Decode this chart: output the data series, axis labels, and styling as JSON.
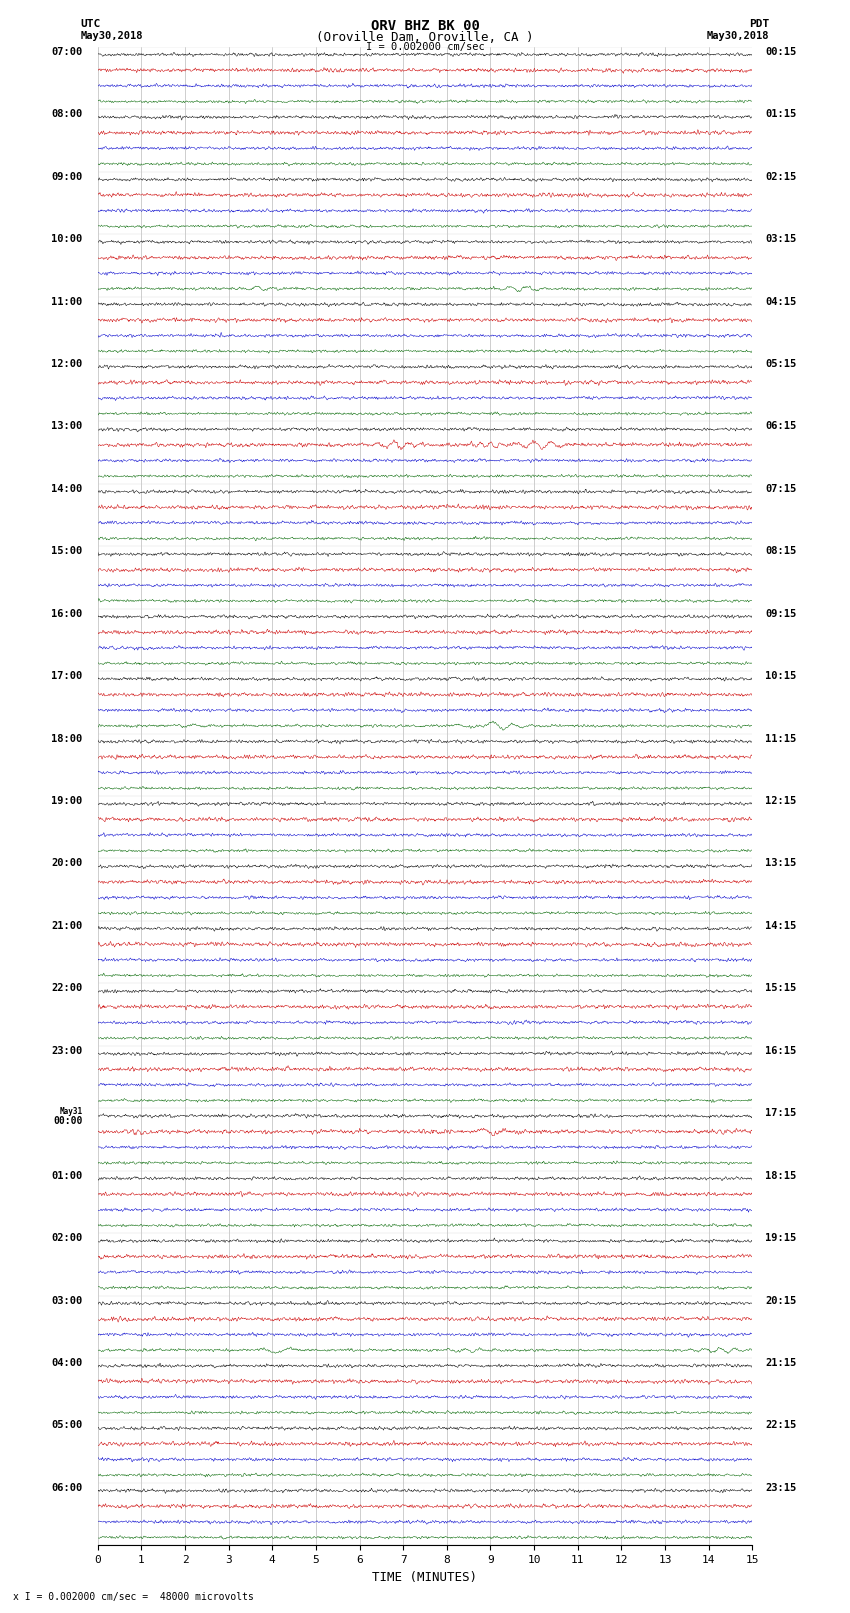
{
  "title_line1": "ORV BHZ BK 00",
  "title_line2": "(Oroville Dam, Oroville, CA )",
  "scale_text": "I = 0.002000 cm/sec",
  "footer_text": "x I = 0.002000 cm/sec =  48000 microvolts",
  "utc_label": "UTC",
  "utc_date": "May30,2018",
  "pdt_label": "PDT",
  "pdt_date": "May30,2018",
  "xlabel": "TIME (MINUTES)",
  "x_min": 0,
  "x_max": 15,
  "background_color": "#ffffff",
  "trace_colors": [
    "#000000",
    "#cc0000",
    "#0000cc",
    "#006600"
  ],
  "grid_color": "#aaaaaa",
  "utc_times_major": [
    "07:00",
    "08:00",
    "09:00",
    "10:00",
    "11:00",
    "12:00",
    "13:00",
    "14:00",
    "15:00",
    "16:00",
    "17:00",
    "18:00",
    "19:00",
    "20:00",
    "21:00",
    "22:00",
    "23:00",
    "May31\n00:00",
    "01:00",
    "02:00",
    "03:00",
    "04:00",
    "05:00",
    "06:00"
  ],
  "pdt_times_major": [
    "00:15",
    "01:15",
    "02:15",
    "03:15",
    "04:15",
    "05:15",
    "06:15",
    "07:15",
    "08:15",
    "09:15",
    "10:15",
    "11:15",
    "12:15",
    "13:15",
    "14:15",
    "15:15",
    "16:15",
    "17:15",
    "18:15",
    "19:15",
    "20:15",
    "21:15",
    "22:15",
    "23:15"
  ],
  "num_hour_blocks": 24,
  "traces_per_block": 4,
  "noise_seed": 42
}
